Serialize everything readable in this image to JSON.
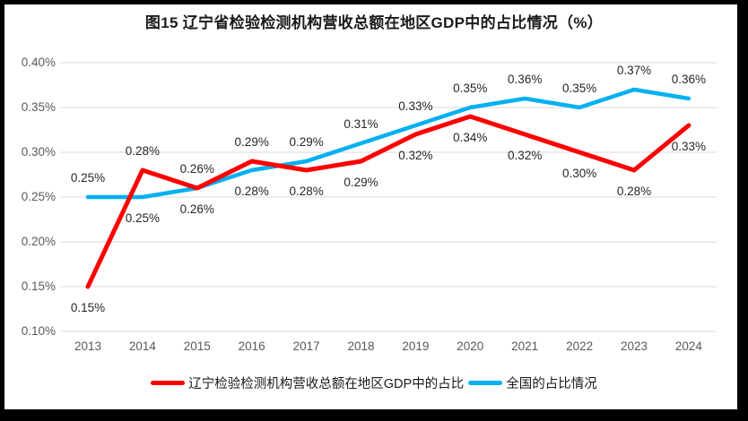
{
  "chart_data": {
    "type": "line",
    "title": "图15 辽宁省检验检测机构营收总额在地区GDP中的占比情况（%）",
    "x_categories": [
      "2013",
      "2014",
      "2015",
      "2016",
      "2017",
      "2018",
      "2019",
      "2020",
      "2021",
      "2022",
      "2023",
      "2024"
    ],
    "series": [
      {
        "name": "辽宁检验检测机构营收总额在地区GDP中的占比",
        "color": "#FF0000",
        "values": [
          0.15,
          0.28,
          0.26,
          0.29,
          0.28,
          0.29,
          0.32,
          0.34,
          0.32,
          0.3,
          0.28,
          0.33
        ],
        "labels": [
          "0.15%",
          "0.28%",
          "0.26%",
          "0.29%",
          "0.28%",
          "0.29%",
          "0.32%",
          "0.34%",
          "0.32%",
          "0.30%",
          "0.28%",
          "0.33%"
        ]
      },
      {
        "name": "全国的占比情况",
        "color": "#00B0F0",
        "values": [
          0.25,
          0.25,
          0.26,
          0.28,
          0.29,
          0.31,
          0.33,
          0.35,
          0.36,
          0.35,
          0.37,
          0.36
        ],
        "labels": [
          "0.25%",
          "0.25%",
          "0.26%",
          "0.28%",
          "0.29%",
          "0.31%",
          "0.33%",
          "0.35%",
          "0.36%",
          "0.35%",
          "0.37%",
          "0.36%"
        ]
      }
    ],
    "y_ticks": [
      "0.40%",
      "0.35%",
      "0.30%",
      "0.25%",
      "0.20%",
      "0.15%",
      "0.10%"
    ],
    "ylim": [
      0.1,
      0.4
    ],
    "grid": true,
    "data_labels": true,
    "legend_position": "bottom"
  },
  "colors": {
    "background": "#FFFFFF",
    "border": "#000000",
    "grid": "#D9D9D9",
    "axis_text": "#595959",
    "data_label_text": "#262626",
    "series_liaoning": "#FF0000",
    "series_national": "#00B0F0"
  }
}
